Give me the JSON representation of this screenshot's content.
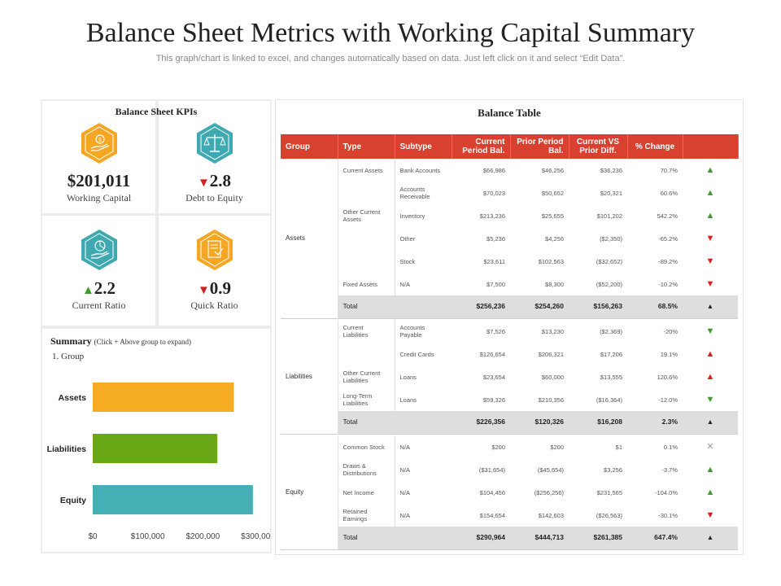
{
  "title": "Balance Sheet Metrics with Working Capital Summary",
  "subtitle": "This graph/chart is linked to excel, and changes automatically based on data. Just left click on it and select “Edit Data”.",
  "kpis": {
    "heading": "Balance Sheet KPIs",
    "items": [
      {
        "value": "$201,011",
        "label": "Working Capital",
        "trend": "",
        "icon": "dollar-hand-icon",
        "color": "#f5a623"
      },
      {
        "value": "2.8",
        "label": "Debt to Equity",
        "trend": "▼",
        "icon": "scale-icon",
        "color": "#3fa9b1"
      },
      {
        "value": "2.2",
        "label": "Current Ratio",
        "trend": "▲",
        "icon": "coin-hand-icon",
        "color": "#3fa9b1"
      },
      {
        "value": "0.9",
        "label": "Quick Ratio",
        "trend": "▼",
        "icon": "document-icon",
        "color": "#f5a623"
      }
    ]
  },
  "summary": {
    "title": "Summary",
    "note": "(Click + Above group to expand)",
    "sub": "1. Group"
  },
  "chart_data": {
    "type": "bar",
    "orientation": "horizontal",
    "categories": [
      "Assets",
      "Liabilities",
      "Equity"
    ],
    "values": [
      256236,
      226356,
      290964
    ],
    "colors": [
      "#f5ac22",
      "#6aa717",
      "#45b0b5"
    ],
    "xlim": [
      0,
      300000
    ],
    "xticks": [
      0,
      100000,
      200000,
      300000
    ],
    "xtick_labels": [
      "$0",
      "$100,000",
      "$200,000",
      "$300,000"
    ],
    "title": "",
    "xlabel": "",
    "ylabel": ""
  },
  "table": {
    "title": "Balance Table",
    "headers": [
      "Group",
      "Type",
      "Subtype",
      "Current Period Bal.",
      "Prior Period Bal.",
      "Current VS Prior Diff.",
      "% Change"
    ]
  },
  "groups": [
    {
      "name": "Assets",
      "rows": [
        {
          "type": "Current Assets",
          "subtype": "Bank Accounts",
          "cur": "$66,986",
          "prior": "$46,256",
          "diff": "$36,236",
          "pct": "70.7%",
          "ind": "▲",
          "dir": "up"
        },
        {
          "type": "",
          "subtype": "Accounts Receivable",
          "cur": "$70,023",
          "prior": "$50,652",
          "diff": "$20,321",
          "pct": "60.6%",
          "ind": "▲",
          "dir": "up"
        },
        {
          "type": "Other Current Assets",
          "subtype": "Inventory",
          "cur": "$213,236",
          "prior": "$25,655",
          "diff": "$101,202",
          "pct": "542.2%",
          "ind": "▲",
          "dir": "up"
        },
        {
          "type": "",
          "subtype": "Other",
          "cur": "$5,236",
          "prior": "$4,256",
          "diff": "($2,350)",
          "pct": "-65.2%",
          "ind": "▼",
          "dir": "down"
        },
        {
          "type": "",
          "subtype": "Stock",
          "cur": "$23,611",
          "prior": "$102,563",
          "diff": "($32,652)",
          "pct": "-89.2%",
          "ind": "▼",
          "dir": "down"
        },
        {
          "type": "Fixed Assets",
          "subtype": "N/A",
          "cur": "$7,500",
          "prior": "$8,300",
          "diff": "($52,200)",
          "pct": "-10.2%",
          "ind": "▼",
          "dir": "down"
        }
      ],
      "total": {
        "label": "Total",
        "cur": "$256,236",
        "prior": "$254,260",
        "diff": "$156,263",
        "pct": "68.5%",
        "ind": "▲",
        "dir": "up"
      }
    },
    {
      "name": "Liabilities",
      "rows": [
        {
          "type": "Current Liabilities",
          "subtype": "Accounts Payable",
          "cur": "$7,526",
          "prior": "$13,230",
          "diff": "($2,369)",
          "pct": "-20%",
          "ind": "▼",
          "dir": "up"
        },
        {
          "type": "",
          "subtype": "Credit Cards",
          "cur": "$126,654",
          "prior": "$206,321",
          "diff": "$17,206",
          "pct": "19.1%",
          "ind": "▲",
          "dir": "down"
        },
        {
          "type": "Other Current Liabilities",
          "subtype": "Loans",
          "cur": "$23,654",
          "prior": "$60,000",
          "diff": "$13,555",
          "pct": "120.6%",
          "ind": "▲",
          "dir": "down"
        },
        {
          "type": "Long-Term Liabilities",
          "subtype": "Loans",
          "cur": "$59,326",
          "prior": "$210,356",
          "diff": "($16,364)",
          "pct": "-12.0%",
          "ind": "▼",
          "dir": "up"
        }
      ],
      "total": {
        "label": "Total",
        "cur": "$226,356",
        "prior": "$120,326",
        "diff": "$16,208",
        "pct": "2.3%",
        "ind": "▲",
        "dir": "down"
      }
    },
    {
      "name": "Equity",
      "rows": [
        {
          "type": "Common Stock",
          "subtype": "N/A",
          "cur": "$200",
          "prior": "$200",
          "diff": "$1",
          "pct": "0.1%",
          "ind": "✕",
          "dir": "neutral"
        },
        {
          "type": "Draws & Distributions",
          "subtype": "N/A",
          "cur": "($31,654)",
          "prior": "($45,654)",
          "diff": "$3,256",
          "pct": "-3.7%",
          "ind": "▲",
          "dir": "up"
        },
        {
          "type": "Net Income",
          "subtype": "N/A",
          "cur": "$104,456",
          "prior": "($256,256)",
          "diff": "$231,565",
          "pct": "-104.0%",
          "ind": "▲",
          "dir": "up"
        },
        {
          "type": "Retained Earnings",
          "subtype": "N/A",
          "cur": "$154,654",
          "prior": "$142,603",
          "diff": "($26,563)",
          "pct": "-30.1%",
          "ind": "▼",
          "dir": "down"
        }
      ],
      "total": {
        "label": "Total",
        "cur": "$290,964",
        "prior": "$444,713",
        "diff": "$261,385",
        "pct": "647.4%",
        "ind": "▲",
        "dir": "up"
      }
    }
  ]
}
